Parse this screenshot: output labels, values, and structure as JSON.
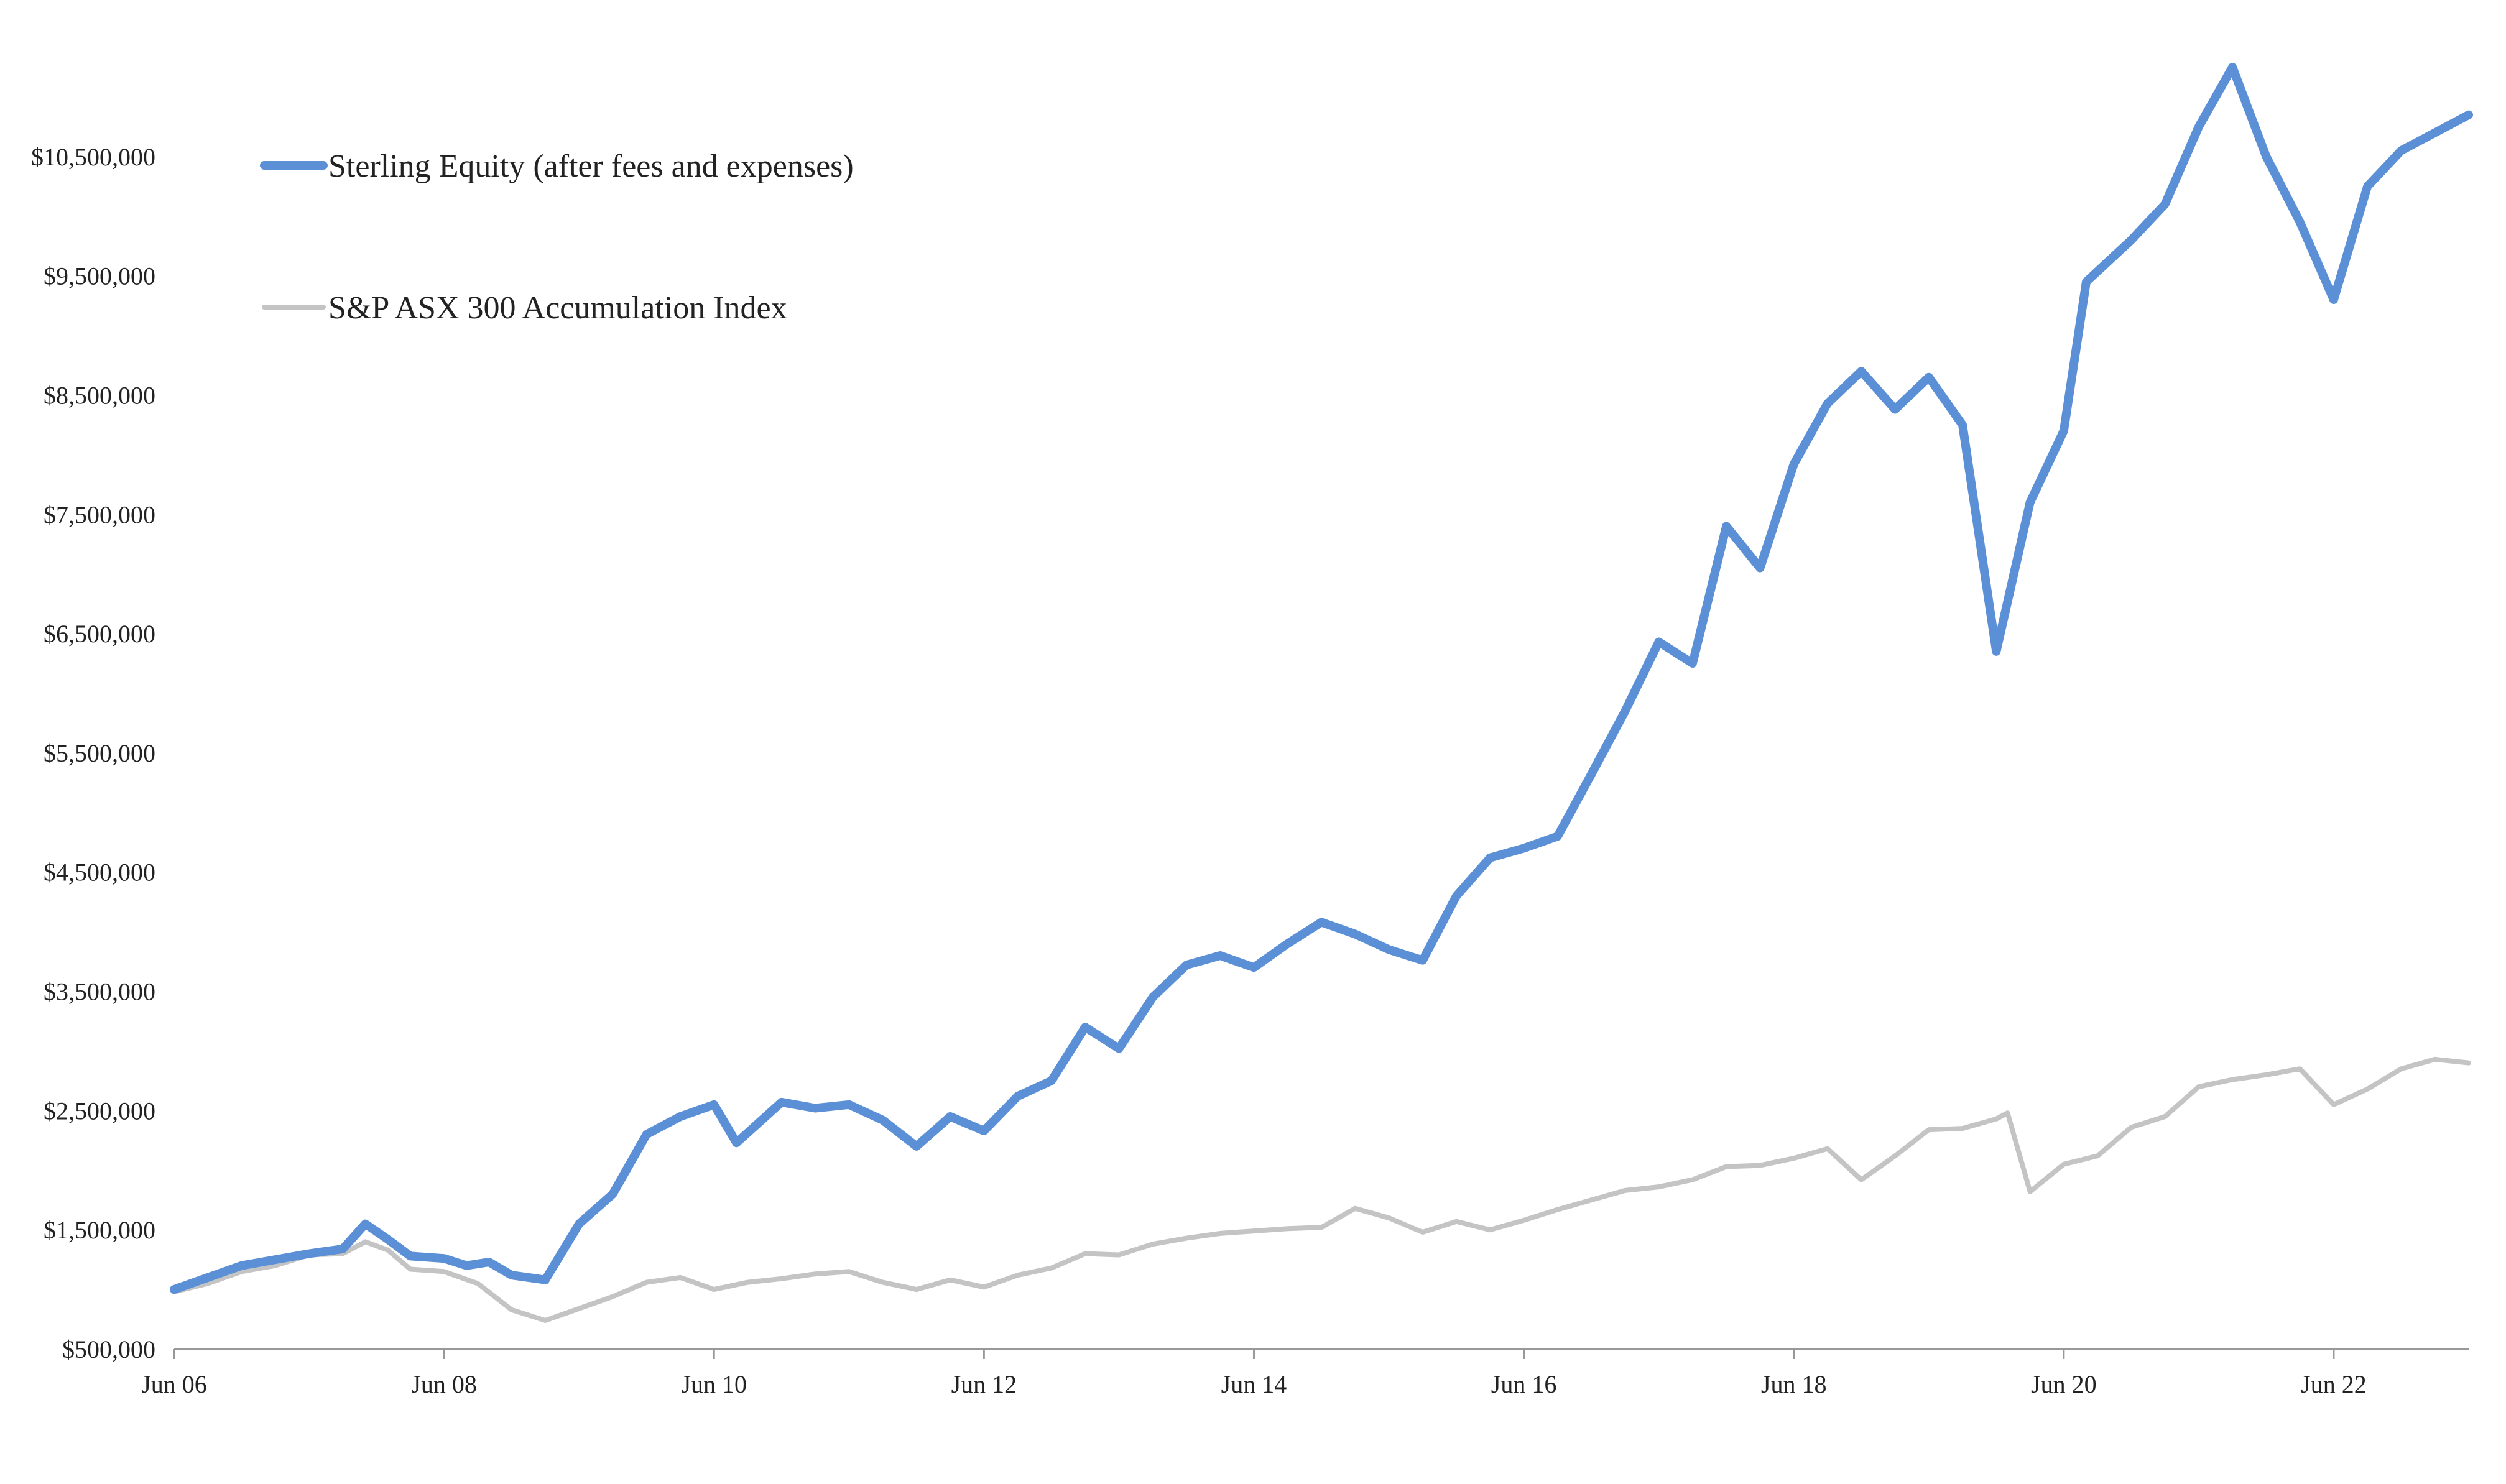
{
  "chart_data": {
    "type": "line",
    "title": "",
    "xlabel": "",
    "ylabel": "",
    "x_ticks": [
      "Jun 06",
      "Jun 08",
      "Jun 10",
      "Jun 12",
      "Jun 14",
      "Jun 16",
      "Jun 18",
      "Jun 20",
      "Jun 22"
    ],
    "y_ticks": [
      "$500,000",
      "$1,500,000",
      "$2,500,000",
      "$3,500,000",
      "$4,500,000",
      "$5,500,000",
      "$6,500,000",
      "$7,500,000",
      "$8,500,000",
      "$9,500,000",
      "$10,500,000"
    ],
    "ylim": [
      500000,
      11500000
    ],
    "xlim": [
      "2006-06",
      "2023-06"
    ],
    "grid": false,
    "legend_position": "top-left",
    "series": [
      {
        "name": "Sterling Equity (after fees and expenses)",
        "color": "#5B8FD6",
        "points": [
          [
            "2006-06",
            1000000
          ],
          [
            "2006-09",
            1100000
          ],
          [
            "2006-12",
            1200000
          ],
          [
            "2007-03",
            1250000
          ],
          [
            "2007-06",
            1300000
          ],
          [
            "2007-09",
            1340000
          ],
          [
            "2007-11",
            1550000
          ],
          [
            "2008-01",
            1420000
          ],
          [
            "2008-03",
            1280000
          ],
          [
            "2008-06",
            1260000
          ],
          [
            "2008-08",
            1200000
          ],
          [
            "2008-10",
            1230000
          ],
          [
            "2008-12",
            1120000
          ],
          [
            "2009-03",
            1080000
          ],
          [
            "2009-06",
            1550000
          ],
          [
            "2009-09",
            1800000
          ],
          [
            "2009-12",
            2300000
          ],
          [
            "2010-03",
            2450000
          ],
          [
            "2010-06",
            2550000
          ],
          [
            "2010-08",
            2230000
          ],
          [
            "2010-12",
            2570000
          ],
          [
            "2011-03",
            2520000
          ],
          [
            "2011-06",
            2550000
          ],
          [
            "2011-09",
            2420000
          ],
          [
            "2011-12",
            2200000
          ],
          [
            "2012-03",
            2450000
          ],
          [
            "2012-06",
            2330000
          ],
          [
            "2012-09",
            2620000
          ],
          [
            "2012-12",
            2750000
          ],
          [
            "2013-03",
            3200000
          ],
          [
            "2013-06",
            3020000
          ],
          [
            "2013-09",
            3450000
          ],
          [
            "2013-12",
            3720000
          ],
          [
            "2014-03",
            3800000
          ],
          [
            "2014-06",
            3700000
          ],
          [
            "2014-09",
            3900000
          ],
          [
            "2014-12",
            4080000
          ],
          [
            "2015-03",
            3980000
          ],
          [
            "2015-06",
            3850000
          ],
          [
            "2015-09",
            3760000
          ],
          [
            "2015-12",
            4300000
          ],
          [
            "2016-03",
            4620000
          ],
          [
            "2016-06",
            4700000
          ],
          [
            "2016-09",
            4800000
          ],
          [
            "2016-12",
            5320000
          ],
          [
            "2017-03",
            5850000
          ],
          [
            "2017-06",
            6430000
          ],
          [
            "2017-09",
            6250000
          ],
          [
            "2017-12",
            7400000
          ],
          [
            "2018-03",
            7050000
          ],
          [
            "2018-06",
            7920000
          ],
          [
            "2018-09",
            8430000
          ],
          [
            "2018-12",
            8700000
          ],
          [
            "2019-03",
            8380000
          ],
          [
            "2019-06",
            8650000
          ],
          [
            "2019-09",
            8250000
          ],
          [
            "2019-12",
            6350000
          ],
          [
            "2020-03",
            7600000
          ],
          [
            "2020-06",
            8200000
          ],
          [
            "2020-08",
            9450000
          ],
          [
            "2020-12",
            9800000
          ],
          [
            "2021-03",
            10100000
          ],
          [
            "2021-06",
            10750000
          ],
          [
            "2021-09",
            11250000
          ],
          [
            "2021-12",
            10500000
          ],
          [
            "2022-03",
            9950000
          ],
          [
            "2022-06",
            9300000
          ],
          [
            "2022-09",
            10250000
          ],
          [
            "2022-12",
            10550000
          ],
          [
            "2023-03",
            10700000
          ],
          [
            "2023-06",
            10850000
          ]
        ]
      },
      {
        "name": "S&P ASX 300 Accumulation Index",
        "color": "#C4C4C4",
        "points": [
          [
            "2006-06",
            980000
          ],
          [
            "2006-09",
            1050000
          ],
          [
            "2006-12",
            1150000
          ],
          [
            "2007-03",
            1200000
          ],
          [
            "2007-06",
            1290000
          ],
          [
            "2007-09",
            1300000
          ],
          [
            "2007-11",
            1400000
          ],
          [
            "2008-01",
            1330000
          ],
          [
            "2008-03",
            1170000
          ],
          [
            "2008-06",
            1150000
          ],
          [
            "2008-09",
            1050000
          ],
          [
            "2008-12",
            830000
          ],
          [
            "2009-03",
            740000
          ],
          [
            "2009-06",
            840000
          ],
          [
            "2009-09",
            940000
          ],
          [
            "2009-12",
            1060000
          ],
          [
            "2010-03",
            1100000
          ],
          [
            "2010-06",
            1000000
          ],
          [
            "2010-09",
            1060000
          ],
          [
            "2010-12",
            1090000
          ],
          [
            "2011-03",
            1130000
          ],
          [
            "2011-06",
            1150000
          ],
          [
            "2011-09",
            1060000
          ],
          [
            "2011-12",
            1000000
          ],
          [
            "2012-03",
            1080000
          ],
          [
            "2012-06",
            1020000
          ],
          [
            "2012-09",
            1120000
          ],
          [
            "2012-12",
            1180000
          ],
          [
            "2013-03",
            1300000
          ],
          [
            "2013-06",
            1290000
          ],
          [
            "2013-09",
            1380000
          ],
          [
            "2013-12",
            1430000
          ],
          [
            "2014-03",
            1470000
          ],
          [
            "2014-06",
            1490000
          ],
          [
            "2014-09",
            1510000
          ],
          [
            "2014-12",
            1520000
          ],
          [
            "2015-03",
            1680000
          ],
          [
            "2015-06",
            1600000
          ],
          [
            "2015-09",
            1480000
          ],
          [
            "2015-12",
            1570000
          ],
          [
            "2016-03",
            1500000
          ],
          [
            "2016-06",
            1580000
          ],
          [
            "2016-09",
            1670000
          ],
          [
            "2016-12",
            1750000
          ],
          [
            "2017-03",
            1830000
          ],
          [
            "2017-06",
            1860000
          ],
          [
            "2017-09",
            1920000
          ],
          [
            "2017-12",
            2030000
          ],
          [
            "2018-03",
            2040000
          ],
          [
            "2018-06",
            2100000
          ],
          [
            "2018-09",
            2180000
          ],
          [
            "2018-12",
            1920000
          ],
          [
            "2019-03",
            2120000
          ],
          [
            "2019-06",
            2340000
          ],
          [
            "2019-09",
            2350000
          ],
          [
            "2019-12",
            2430000
          ],
          [
            "2020-01",
            2480000
          ],
          [
            "2020-03",
            1820000
          ],
          [
            "2020-06",
            2050000
          ],
          [
            "2020-09",
            2120000
          ],
          [
            "2020-12",
            2360000
          ],
          [
            "2021-03",
            2450000
          ],
          [
            "2021-06",
            2700000
          ],
          [
            "2021-09",
            2760000
          ],
          [
            "2021-12",
            2800000
          ],
          [
            "2022-03",
            2850000
          ],
          [
            "2022-06",
            2550000
          ],
          [
            "2022-09",
            2680000
          ],
          [
            "2022-12",
            2850000
          ],
          [
            "2023-03",
            2930000
          ],
          [
            "2023-06",
            2900000
          ]
        ]
      }
    ]
  }
}
